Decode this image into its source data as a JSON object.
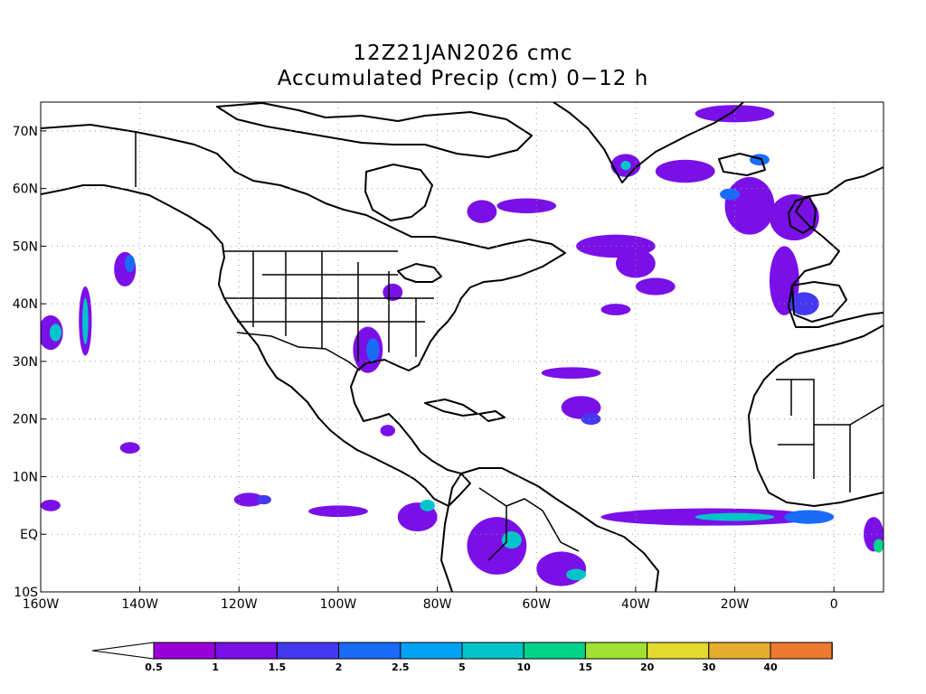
{
  "title": {
    "line1": "12Z21JAN2026 cmc",
    "line2": "Accumulated Precip (cm) 0−12 h"
  },
  "map": {
    "lon_range": [
      -160,
      10
    ],
    "lat_range": [
      -10,
      75
    ],
    "lon_ticks": [
      {
        "value": -160,
        "label": "160W"
      },
      {
        "value": -140,
        "label": "140W"
      },
      {
        "value": -120,
        "label": "120W"
      },
      {
        "value": -100,
        "label": "100W"
      },
      {
        "value": -80,
        "label": "80W"
      },
      {
        "value": -60,
        "label": "60W"
      },
      {
        "value": -40,
        "label": "40W"
      },
      {
        "value": -20,
        "label": "20W"
      },
      {
        "value": 0,
        "label": "0"
      }
    ],
    "lat_ticks": [
      {
        "value": -10,
        "label": "10S"
      },
      {
        "value": 0,
        "label": "EQ"
      },
      {
        "value": 10,
        "label": "10N"
      },
      {
        "value": 20,
        "label": "20N"
      },
      {
        "value": 30,
        "label": "30N"
      },
      {
        "value": 40,
        "label": "40N"
      },
      {
        "value": 50,
        "label": "50N"
      },
      {
        "value": 60,
        "label": "60N"
      },
      {
        "value": 70,
        "label": "70N"
      }
    ],
    "grid": true
  },
  "colorbar": {
    "levels": [
      "0.5",
      "1",
      "1.5",
      "2",
      "2.5",
      "5",
      "10",
      "15",
      "20",
      "30",
      "40"
    ],
    "colors": [
      "#9a00d8",
      "#7a10e8",
      "#4438f0",
      "#1a6cf8",
      "#00a2f4",
      "#00c4c8",
      "#00d48a",
      "#a0e234",
      "#e4da2e",
      "#e6ae2e",
      "#ee7a30",
      "#f0403a"
    ]
  },
  "precip_regions": [
    {
      "lon": -143,
      "lat": 46,
      "rx": 2.2,
      "ry": 3,
      "level": 1
    },
    {
      "lon": -142,
      "lat": 47,
      "rx": 1,
      "ry": 1.5,
      "level": 3
    },
    {
      "lon": -151,
      "lat": 37,
      "rx": 1.3,
      "ry": 6,
      "level": 1
    },
    {
      "lon": -151,
      "lat": 37,
      "rx": 0.6,
      "ry": 4,
      "level": 5
    },
    {
      "lon": -158,
      "lat": 35,
      "rx": 2.5,
      "ry": 3,
      "level": 1
    },
    {
      "lon": -157,
      "lat": 35,
      "rx": 1.2,
      "ry": 1.5,
      "level": 5
    },
    {
      "lon": -94,
      "lat": 32,
      "rx": 3,
      "ry": 4,
      "level": 1
    },
    {
      "lon": -93,
      "lat": 32,
      "rx": 1.3,
      "ry": 2,
      "level": 3
    },
    {
      "lon": -89,
      "lat": 42,
      "rx": 2,
      "ry": 1.5,
      "level": 1
    },
    {
      "lon": -71,
      "lat": 56,
      "rx": 3,
      "ry": 2,
      "level": 1
    },
    {
      "lon": -62,
      "lat": 57,
      "rx": 6,
      "ry": 1.3,
      "level": 1
    },
    {
      "lon": -44,
      "lat": 50,
      "rx": 8,
      "ry": 2,
      "level": 1
    },
    {
      "lon": -40,
      "lat": 47,
      "rx": 4,
      "ry": 2.5,
      "level": 1
    },
    {
      "lon": -36,
      "lat": 43,
      "rx": 4,
      "ry": 1.5,
      "level": 1
    },
    {
      "lon": -44,
      "lat": 39,
      "rx": 3,
      "ry": 1,
      "level": 1
    },
    {
      "lon": -53,
      "lat": 28,
      "rx": 6,
      "ry": 1,
      "level": 1
    },
    {
      "lon": -51,
      "lat": 22,
      "rx": 4,
      "ry": 2,
      "level": 1
    },
    {
      "lon": -49,
      "lat": 20,
      "rx": 2,
      "ry": 1,
      "level": 2
    },
    {
      "lon": -42,
      "lat": 64,
      "rx": 3,
      "ry": 2,
      "level": 1
    },
    {
      "lon": -42,
      "lat": 64,
      "rx": 1,
      "ry": 0.8,
      "level": 5
    },
    {
      "lon": -30,
      "lat": 63,
      "rx": 6,
      "ry": 2,
      "level": 1
    },
    {
      "lon": -17,
      "lat": 57,
      "rx": 5,
      "ry": 5,
      "level": 1
    },
    {
      "lon": -21,
      "lat": 59,
      "rx": 2,
      "ry": 1,
      "level": 3
    },
    {
      "lon": -20,
      "lat": 73,
      "rx": 8,
      "ry": 1.5,
      "level": 1
    },
    {
      "lon": -15,
      "lat": 65,
      "rx": 2,
      "ry": 1,
      "level": 3
    },
    {
      "lon": -8,
      "lat": 55,
      "rx": 5,
      "ry": 4,
      "level": 1
    },
    {
      "lon": -10,
      "lat": 44,
      "rx": 3,
      "ry": 6,
      "level": 1
    },
    {
      "lon": -6,
      "lat": 40,
      "rx": 3,
      "ry": 2,
      "level": 2
    },
    {
      "lon": -118,
      "lat": 6,
      "rx": 3,
      "ry": 1.2,
      "level": 1
    },
    {
      "lon": -115,
      "lat": 6,
      "rx": 1.5,
      "ry": 0.8,
      "level": 2
    },
    {
      "lon": -100,
      "lat": 4,
      "rx": 6,
      "ry": 1,
      "level": 1
    },
    {
      "lon": -84,
      "lat": 3,
      "rx": 4,
      "ry": 2.5,
      "level": 1
    },
    {
      "lon": -82,
      "lat": 5,
      "rx": 1.5,
      "ry": 1,
      "level": 5
    },
    {
      "lon": -68,
      "lat": -2,
      "rx": 6,
      "ry": 5,
      "level": 1
    },
    {
      "lon": -65,
      "lat": -1,
      "rx": 2,
      "ry": 1.5,
      "level": 5
    },
    {
      "lon": -55,
      "lat": -6,
      "rx": 5,
      "ry": 3,
      "level": 1
    },
    {
      "lon": -52,
      "lat": -7,
      "rx": 2,
      "ry": 1,
      "level": 5
    },
    {
      "lon": -25,
      "lat": 3,
      "rx": 22,
      "ry": 1.5,
      "level": 1
    },
    {
      "lon": -20,
      "lat": 3,
      "rx": 8,
      "ry": 0.7,
      "level": 5
    },
    {
      "lon": -5,
      "lat": 3,
      "rx": 5,
      "ry": 1.2,
      "level": 3
    },
    {
      "lon": 8,
      "lat": 0,
      "rx": 2,
      "ry": 3,
      "level": 1
    },
    {
      "lon": 9,
      "lat": -2,
      "rx": 1,
      "ry": 1.2,
      "level": 6
    },
    {
      "lon": -142,
      "lat": 15,
      "rx": 2,
      "ry": 1,
      "level": 1
    },
    {
      "lon": -158,
      "lat": 5,
      "rx": 2,
      "ry": 1,
      "level": 1
    },
    {
      "lon": -90,
      "lat": 18,
      "rx": 1.5,
      "ry": 1,
      "level": 1
    }
  ]
}
